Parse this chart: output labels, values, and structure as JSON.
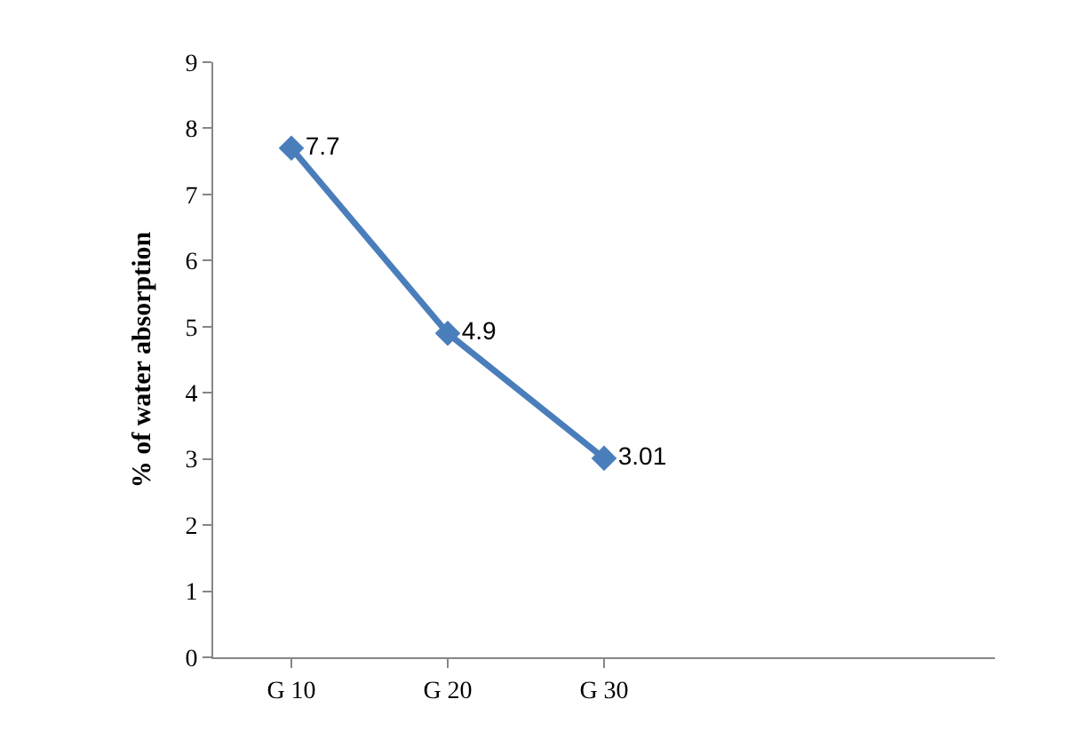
{
  "chart_data": {
    "type": "line",
    "ylabel": "% of water absorption",
    "categories": [
      "G 10",
      "G 20",
      "G 30",
      null,
      null
    ],
    "series": [
      {
        "color": "#4a7ebb",
        "values": [
          7.7,
          4.9,
          3.01,
          null,
          null
        ]
      }
    ],
    "ylim": [
      0,
      9
    ],
    "yticks": [
      0,
      1,
      2,
      3,
      4,
      5,
      6,
      7,
      8,
      9
    ],
    "marker": "diamond",
    "line_style": "solid",
    "data_labels": true
  }
}
